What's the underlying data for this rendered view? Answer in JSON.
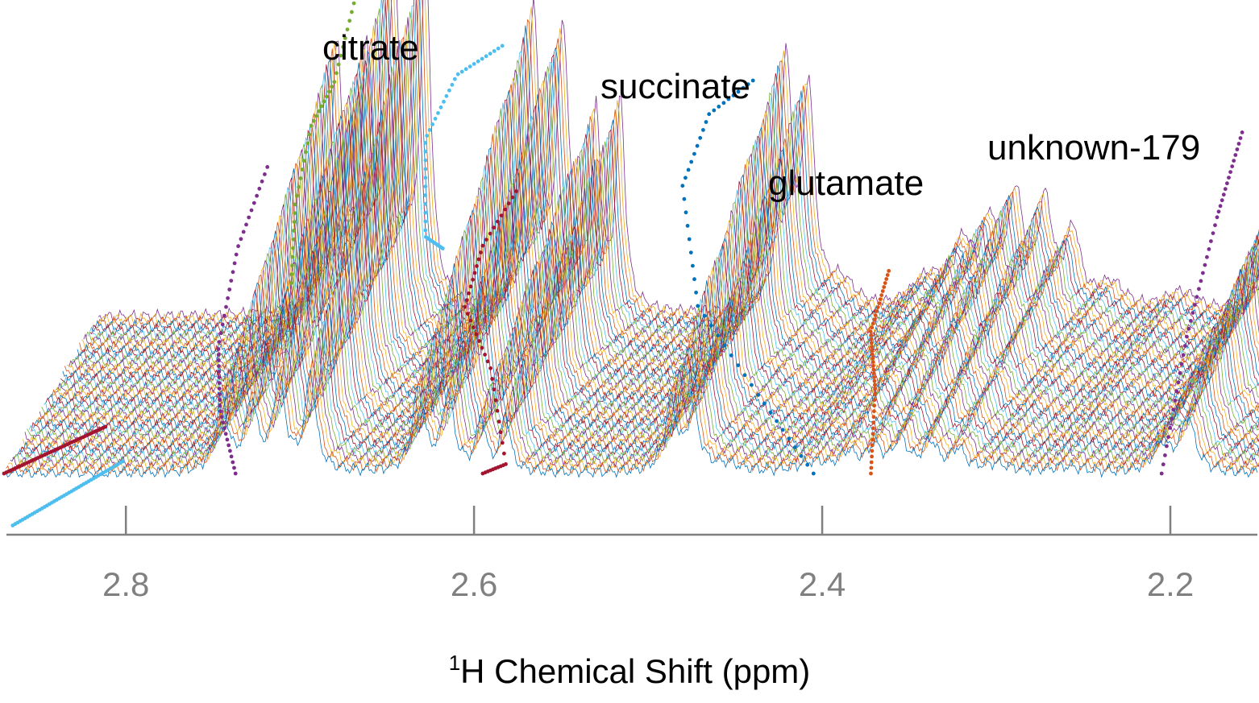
{
  "chart_data": {
    "type": "line",
    "subtype": "stacked-spectra-waterfall",
    "xlabel_superscript": "1",
    "xlabel_main": "H Chemical Shift (ppm)",
    "x_reversed": true,
    "xlim": [
      2.87,
      2.15
    ],
    "xticks": [
      2.8,
      2.6,
      2.4,
      2.2
    ],
    "xtick_labels": [
      "2.8",
      "2.6",
      "2.4",
      "2.2"
    ],
    "grid": false,
    "legend": "none",
    "n_spectra": 46,
    "spectrum_colors": [
      "#0072BD",
      "#D95319",
      "#EDB120",
      "#7E2F8E",
      "#77AC30",
      "#4DBEEE",
      "#A2142F"
    ],
    "peak_labels": [
      {
        "text": "citrate",
        "ppm": 2.675
      },
      {
        "text": "succinate",
        "ppm": 2.495
      },
      {
        "text": "glutamate",
        "ppm": 2.392
      },
      {
        "text": "unknown-179",
        "ppm": 2.258
      }
    ],
    "peaks": [
      {
        "ppm": 2.745,
        "height": 0.75,
        "width": 0.004
      },
      {
        "ppm": 2.728,
        "height": 0.7,
        "width": 0.004
      },
      {
        "ppm": 2.712,
        "height": 0.95,
        "width": 0.004
      },
      {
        "ppm": 2.694,
        "height": 1.0,
        "width": 0.0035
      },
      {
        "ppm": 2.632,
        "height": 0.85,
        "width": 0.004
      },
      {
        "ppm": 2.615,
        "height": 0.8,
        "width": 0.004
      },
      {
        "ppm": 2.596,
        "height": 0.55,
        "width": 0.003
      },
      {
        "ppm": 2.582,
        "height": 0.6,
        "width": 0.003
      },
      {
        "ppm": 2.487,
        "height": 0.72,
        "width": 0.004
      },
      {
        "ppm": 2.474,
        "height": 0.62,
        "width": 0.004
      },
      {
        "ppm": 2.455,
        "height": 0.08,
        "width": 0.01
      },
      {
        "ppm": 2.405,
        "height": 0.1,
        "width": 0.012
      },
      {
        "ppm": 2.385,
        "height": 0.18,
        "width": 0.006
      },
      {
        "ppm": 2.37,
        "height": 0.24,
        "width": 0.005
      },
      {
        "ppm": 2.355,
        "height": 0.32,
        "width": 0.005
      },
      {
        "ppm": 2.338,
        "height": 0.3,
        "width": 0.005
      },
      {
        "ppm": 2.322,
        "height": 0.22,
        "width": 0.005
      },
      {
        "ppm": 2.3,
        "height": 0.08,
        "width": 0.01
      },
      {
        "ppm": 2.26,
        "height": 0.06,
        "width": 0.012
      },
      {
        "ppm": 2.205,
        "height": 0.28,
        "width": 0.006
      },
      {
        "ppm": 2.19,
        "height": 0.55,
        "width": 0.005
      }
    ],
    "tracked_peaks": [
      {
        "name": "citrate",
        "color": "#77AC30",
        "path": [
          [
            2.705,
            0.55
          ],
          [
            2.706,
            0.75
          ],
          [
            2.7,
            0.95
          ],
          [
            2.69,
            1.05
          ],
          [
            2.682,
            1.25
          ],
          [
            2.678,
            1.4
          ]
        ]
      },
      {
        "name": "citrate",
        "color": "#7E2F8E",
        "path": [
          [
            2.737,
            0.0
          ],
          [
            2.75,
            0.15
          ],
          [
            2.755,
            0.3
          ],
          [
            2.748,
            0.55
          ],
          [
            2.735,
            0.75
          ]
        ]
      },
      {
        "name": "citrate",
        "color": "#4DBEEE",
        "path": [
          [
            2.618,
            0.65
          ],
          [
            2.632,
            0.65
          ],
          [
            2.636,
            0.9
          ],
          [
            2.622,
            1.05
          ],
          [
            2.6,
            1.1
          ]
        ]
      },
      {
        "name": "citrate",
        "color": "#A2142F",
        "path": [
          [
            2.595,
            0.0
          ],
          [
            2.585,
            0.0
          ],
          [
            2.597,
            0.25
          ],
          [
            2.615,
            0.4
          ],
          [
            2.608,
            0.55
          ],
          [
            2.592,
            0.68
          ]
        ]
      },
      {
        "name": "succinate",
        "color": "#0072BD",
        "path": [
          [
            2.405,
            0.0
          ],
          [
            2.44,
            0.2
          ],
          [
            2.478,
            0.43
          ],
          [
            2.49,
            0.75
          ],
          [
            2.478,
            0.93
          ],
          [
            2.456,
            1.0
          ]
        ]
      },
      {
        "name": "glutamate",
        "color": "#D95319",
        "path": [
          [
            2.372,
            0.0
          ],
          [
            2.375,
            0.2
          ],
          [
            2.383,
            0.32
          ],
          [
            2.378,
            0.45
          ]
        ]
      },
      {
        "name": "unknown-179",
        "color": "#7E2F8E",
        "path": [
          [
            2.205,
            0.0
          ],
          [
            2.196,
            0.35
          ],
          [
            2.184,
            0.65
          ],
          [
            2.175,
            0.85
          ]
        ]
      },
      {
        "name": "",
        "color": "#A2142F",
        "path": [
          [
            2.87,
            0.0
          ],
          [
            2.828,
            0.0
          ]
        ]
      },
      {
        "name": "",
        "color": "#4DBEEE",
        "path": [
          [
            2.865,
            -0.15
          ],
          [
            2.818,
            -0.1
          ]
        ]
      }
    ]
  }
}
